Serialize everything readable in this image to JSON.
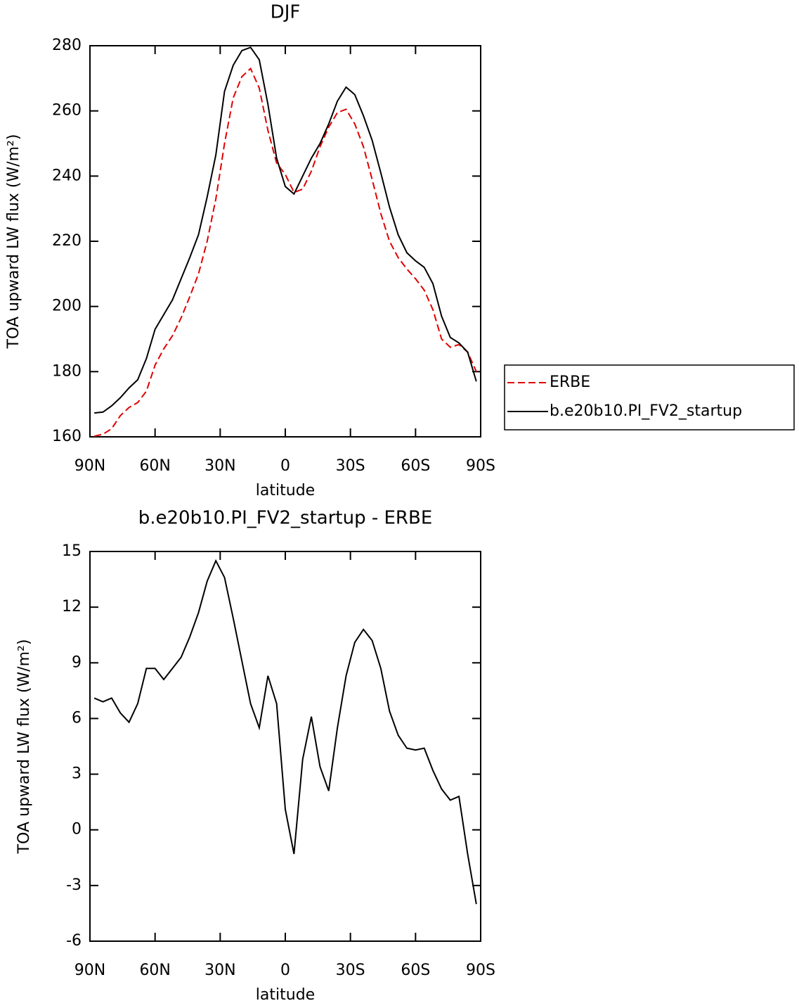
{
  "chart_data": [
    {
      "type": "line",
      "title": "DJF",
      "xlabel": "latitude",
      "ylabel": "TOA upward LW flux (W/m²)",
      "x": [
        88,
        84,
        80,
        76,
        72,
        68,
        64,
        60,
        56,
        52,
        48,
        44,
        40,
        36,
        32,
        28,
        24,
        20,
        16,
        12,
        8,
        4,
        0,
        -4,
        -8,
        -12,
        -16,
        -20,
        -24,
        -28,
        -32,
        -36,
        -40,
        -44,
        -48,
        -52,
        -56,
        -60,
        -64,
        -68,
        -72,
        -76,
        -80,
        -84,
        -88
      ],
      "series": [
        {
          "name": "ERBE",
          "color": "#e00000",
          "dashed": true,
          "values": [
            160.2,
            160.8,
            162.5,
            166.5,
            169,
            170.5,
            174,
            182,
            187,
            191,
            196.5,
            203,
            210,
            220,
            233,
            250,
            264,
            270.5,
            273,
            267,
            254,
            244,
            240.5,
            235,
            236,
            241.5,
            249,
            255,
            259.5,
            260.5,
            256,
            249,
            239,
            228.5,
            220,
            215,
            211.5,
            208.5,
            205,
            199,
            190,
            187.5,
            188.3,
            186,
            180
          ]
        },
        {
          "name": "b.e20b10.PI_FV2_startup",
          "color": "#000000",
          "dashed": false,
          "values": [
            167.3,
            167.6,
            169.5,
            172,
            175,
            177.5,
            184,
            193,
            197.5,
            202,
            208.5,
            215,
            222,
            233.6,
            246.5,
            266,
            274,
            278.5,
            279.5,
            275.7,
            262,
            245.5,
            236.8,
            234.5,
            240,
            245.5,
            250,
            256,
            263,
            267.3,
            265,
            258.5,
            251,
            241,
            230.5,
            222,
            216.5,
            214,
            212,
            207,
            197,
            190.5,
            188.8,
            186,
            177
          ]
        }
      ],
      "xlim": [
        90,
        -90
      ],
      "xticks": [
        {
          "value": 90,
          "label": "90N"
        },
        {
          "value": 60,
          "label": "60N"
        },
        {
          "value": 30,
          "label": "30N"
        },
        0,
        {
          "value": -30,
          "label": "30S"
        },
        {
          "value": -60,
          "label": "60S"
        },
        {
          "value": -90,
          "label": "90S"
        }
      ],
      "ylim": [
        160,
        280
      ],
      "yticks": [
        160,
        180,
        200,
        220,
        240,
        260,
        280
      ],
      "legend": "outside right"
    },
    {
      "type": "line",
      "title": "b.e20b10.PI_FV2_startup - ERBE",
      "xlabel": "latitude",
      "ylabel": "TOA upward LW flux (W/m²)",
      "x": [
        88,
        84,
        80,
        76,
        72,
        68,
        64,
        60,
        56,
        52,
        48,
        44,
        40,
        36,
        32,
        28,
        24,
        20,
        16,
        12,
        8,
        4,
        0,
        -4,
        -8,
        -12,
        -16,
        -20,
        -24,
        -28,
        -32,
        -36,
        -40,
        -44,
        -48,
        -52,
        -56,
        -60,
        -64,
        -68,
        -72,
        -76,
        -80,
        -84,
        -88
      ],
      "series": [
        {
          "color": "#000000",
          "dashed": false,
          "values": [
            7.1,
            6.9,
            7.1,
            6.3,
            5.8,
            6.8,
            8.7,
            8.7,
            8.1,
            8.7,
            9.3,
            10.4,
            11.7,
            13.4,
            14.5,
            13.6,
            11.4,
            9.1,
            6.8,
            5.5,
            8.3,
            6.8,
            1.1,
            -1.3,
            3.8,
            6.1,
            3.4,
            2.1,
            5.5,
            8.3,
            10.1,
            10.8,
            10.2,
            8.7,
            6.4,
            5.1,
            4.4,
            4.3,
            4.4,
            3.2,
            2.2,
            1.6,
            1.8,
            -1.3,
            -4.0
          ]
        }
      ],
      "xlim": [
        90,
        -90
      ],
      "xticks": [
        {
          "value": 90,
          "label": "90N"
        },
        {
          "value": 60,
          "label": "60N"
        },
        {
          "value": 30,
          "label": "30N"
        },
        0,
        {
          "value": -30,
          "label": "30S"
        },
        {
          "value": -60,
          "label": "60S"
        },
        {
          "value": -90,
          "label": "90S"
        }
      ],
      "ylim": [
        -6,
        15
      ],
      "yticks": [
        -6,
        -3,
        0,
        3,
        6,
        9,
        12,
        15
      ]
    }
  ]
}
